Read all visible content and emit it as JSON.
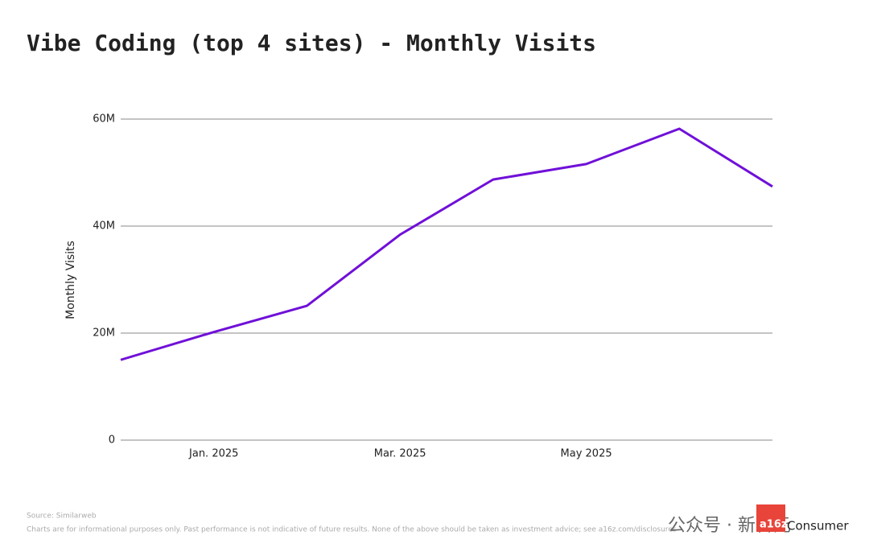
{
  "chart_data": {
    "type": "line",
    "title": "Vibe Coding (top 4 sites) - Monthly Visits",
    "y_label": "Monthly Visits",
    "categories": [
      null,
      "Jan. 2025",
      null,
      "Mar. 2025",
      null,
      "May 2025",
      null,
      null
    ],
    "series": [
      {
        "name": "Monthly Visits",
        "color": "#7010d8",
        "values": [
          15000000,
          20200000,
          25100000,
          38400000,
          48700000,
          51600000,
          58200000,
          47400000
        ]
      }
    ],
    "ylim": [
      0,
      60000000
    ],
    "yticks": [
      0,
      {
        "value": 20000000,
        "label": "20M"
      },
      {
        "value": 40000000,
        "label": "40M"
      },
      {
        "value": 60000000,
        "label": "60M"
      }
    ],
    "grid": true,
    "source": "Source: Similarweb",
    "disclaimer": "Charts are for informational purposes only. Past performance is not indicative of future results. None of the above should be taken as investment advice; see a16z.com/disclosures",
    "watermark": "公众号 · 新智元",
    "logo_mark": "a16z",
    "logo_text": "Consumer"
  }
}
